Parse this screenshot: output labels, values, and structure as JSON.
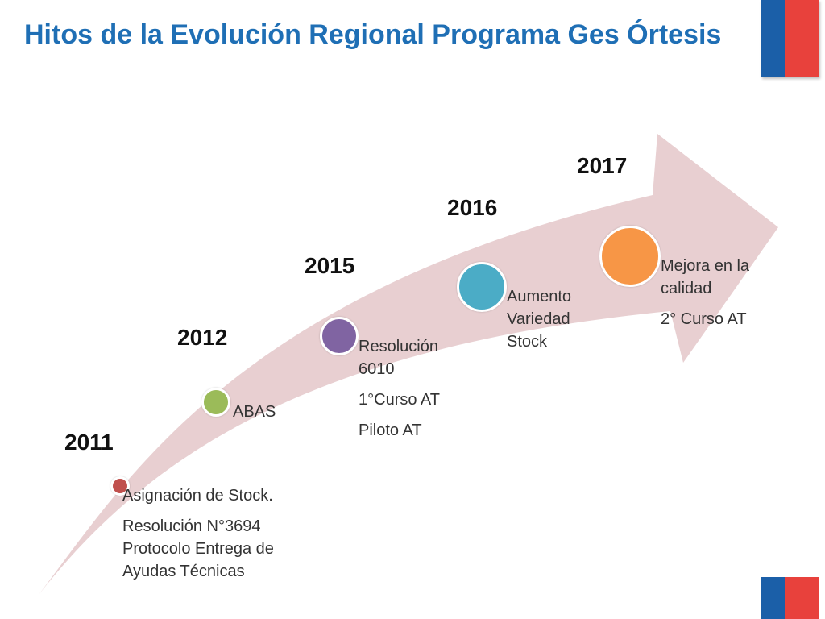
{
  "slide": {
    "title": "Hitos de la Evolución Regional Programa Ges Órtesis"
  },
  "timeline": {
    "milestones": [
      {
        "year": "2011",
        "color": "#c0504d",
        "lines": [
          "Asignación de Stock.",
          "Resolución N°3694 Protocolo Entrega de Ayudas Técnicas"
        ]
      },
      {
        "year": "2012",
        "color": "#9bbb59",
        "lines": [
          "ABAS"
        ]
      },
      {
        "year": "2015",
        "color": "#8064a2",
        "lines": [
          "Resolución 6010",
          "1°Curso AT",
          "Piloto AT"
        ]
      },
      {
        "year": "2016",
        "color": "#4bacc6",
        "lines": [
          "Aumento Variedad Stock"
        ]
      },
      {
        "year": "2017",
        "color": "#f79646",
        "lines": [
          "Mejora en la calidad",
          "2° Curso AT"
        ]
      }
    ]
  }
}
